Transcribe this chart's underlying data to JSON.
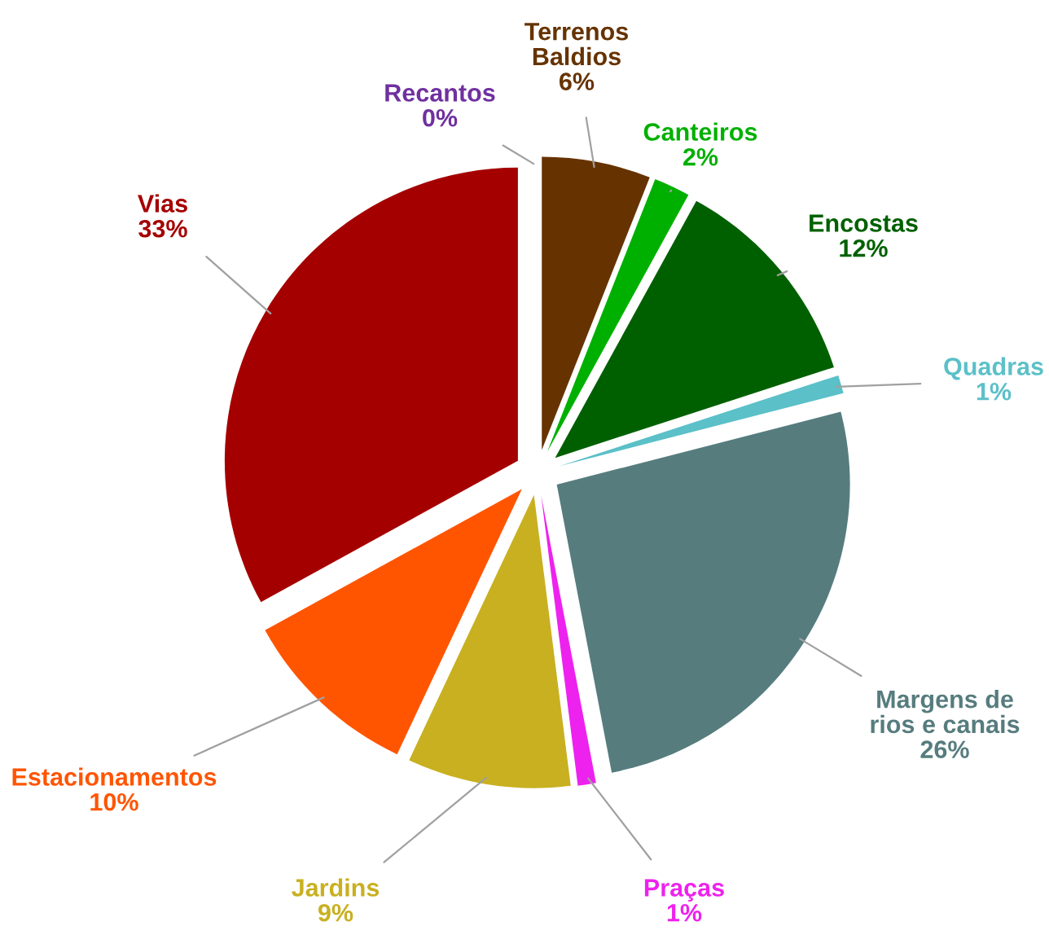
{
  "chart_data": {
    "type": "pie",
    "categories": [
      "Recantos",
      "Terrenos\nBaldios",
      "Canteiros",
      "Encostas",
      "Quadras",
      "Margens de\nrios e canais",
      "Praças",
      "Jardins",
      "Estacionamentos",
      "Vias"
    ],
    "values": [
      0,
      6,
      2,
      12,
      1,
      26,
      1,
      9,
      10,
      33
    ],
    "colors": [
      "#7030a0",
      "#663300",
      "#00b000",
      "#006000",
      "#5bc0c8",
      "#567c7e",
      "#ee22ee",
      "#c8b020",
      "#ff5500",
      "#a50000"
    ],
    "value_labels": [
      "0%",
      "6%",
      "2%",
      "12%",
      "1%",
      "26%",
      "1%",
      "9%",
      "10%",
      "33%"
    ],
    "legend": false
  }
}
